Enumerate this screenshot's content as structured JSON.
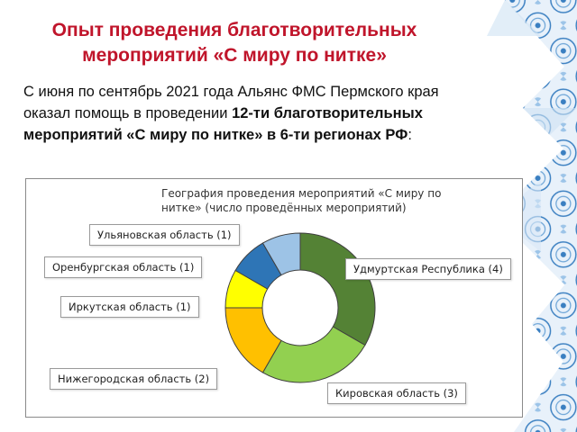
{
  "slide": {
    "title_line1": "Опыт проведения благотворительных",
    "title_line2": "мероприятий «С миру по нитке»",
    "intro_plain": "С июня по сентябрь 2021 года Альянс ФМС Пермского края оказал помощь в проведении  ",
    "intro_bold": "12-ти благотворительных мероприятий «С миру по нитке» в 6-ти регионах РФ",
    "intro_end": ":"
  },
  "chart_data": {
    "type": "pie",
    "title_line1": "География проведения мероприятий «С миру по",
    "title_line2": "нитке» (число проведённых мероприятий)",
    "series": [
      {
        "label": "Удмуртская Республика (4)",
        "value": 4,
        "color": "#548235"
      },
      {
        "label": "Кировская область (3)",
        "value": 3,
        "color": "#92d050"
      },
      {
        "label": "Нижегородская область (2)",
        "value": 2,
        "color": "#ffc000"
      },
      {
        "label": "Иркутская область (1)",
        "value": 1,
        "color": "#ffff00"
      },
      {
        "label": "Оренбургская область (1)",
        "value": 1,
        "color": "#2e75b6"
      },
      {
        "label": "Ульяновская область (1)",
        "value": 1,
        "color": "#9dc3e6"
      }
    ]
  },
  "colors": {
    "title": "#c0152b",
    "decor_primary": "#3a7fc1",
    "decor_light": "#cfe3f4"
  }
}
